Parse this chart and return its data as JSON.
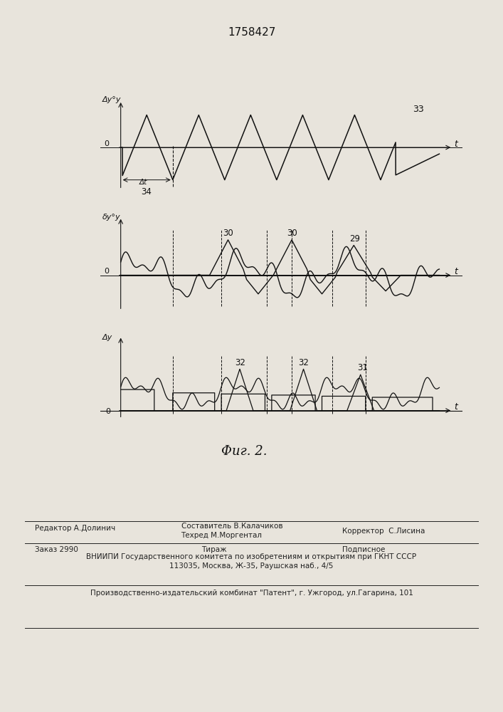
{
  "title": "1758427",
  "fig2_label": "Фиг. 2.",
  "background_color": "#e8e4dc",
  "line_color": "#111111",
  "top_panel": {
    "ylabel": "Δy°у",
    "xlabel": "t",
    "label33": "33",
    "label34": "34",
    "label_dt": "Δt"
  },
  "mid_panel": {
    "ylabel": "δy°у",
    "xlabel": "t",
    "label30a": "30",
    "label30b": "30",
    "label29": "29"
  },
  "bot_panel": {
    "ylabel": "Δy",
    "xlabel": "t",
    "label32a": "32",
    "label32b": "32",
    "label31": "31"
  }
}
